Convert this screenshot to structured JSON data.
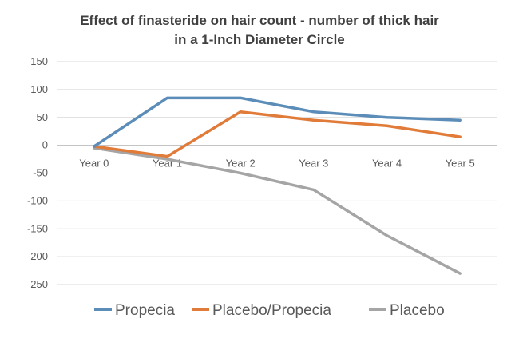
{
  "chart_data": {
    "type": "line",
    "title_lines": [
      "Effect of finasteride on hair count - number of thick hair",
      "in a 1-Inch Diameter Circle"
    ],
    "categories": [
      "Year 0",
      "Year 1",
      "Year 2",
      "Year 3",
      "Year 4",
      "Year 5"
    ],
    "ylim": [
      -250,
      150
    ],
    "yticks": [
      150,
      100,
      50,
      0,
      -50,
      -100,
      -150,
      -200,
      -250
    ],
    "grid": true,
    "legend_position": "bottom",
    "series": [
      {
        "name": "Propecia",
        "color": "#5B8DB8",
        "values": [
          -2,
          85,
          85,
          60,
          50,
          45
        ]
      },
      {
        "name": "Placebo/Propecia",
        "color": "#E07B39",
        "values": [
          -2,
          -20,
          60,
          45,
          35,
          15
        ]
      },
      {
        "name": "Placebo",
        "color": "#A5A5A5",
        "values": [
          -5,
          -25,
          -50,
          -80,
          -162,
          -230
        ]
      }
    ]
  }
}
